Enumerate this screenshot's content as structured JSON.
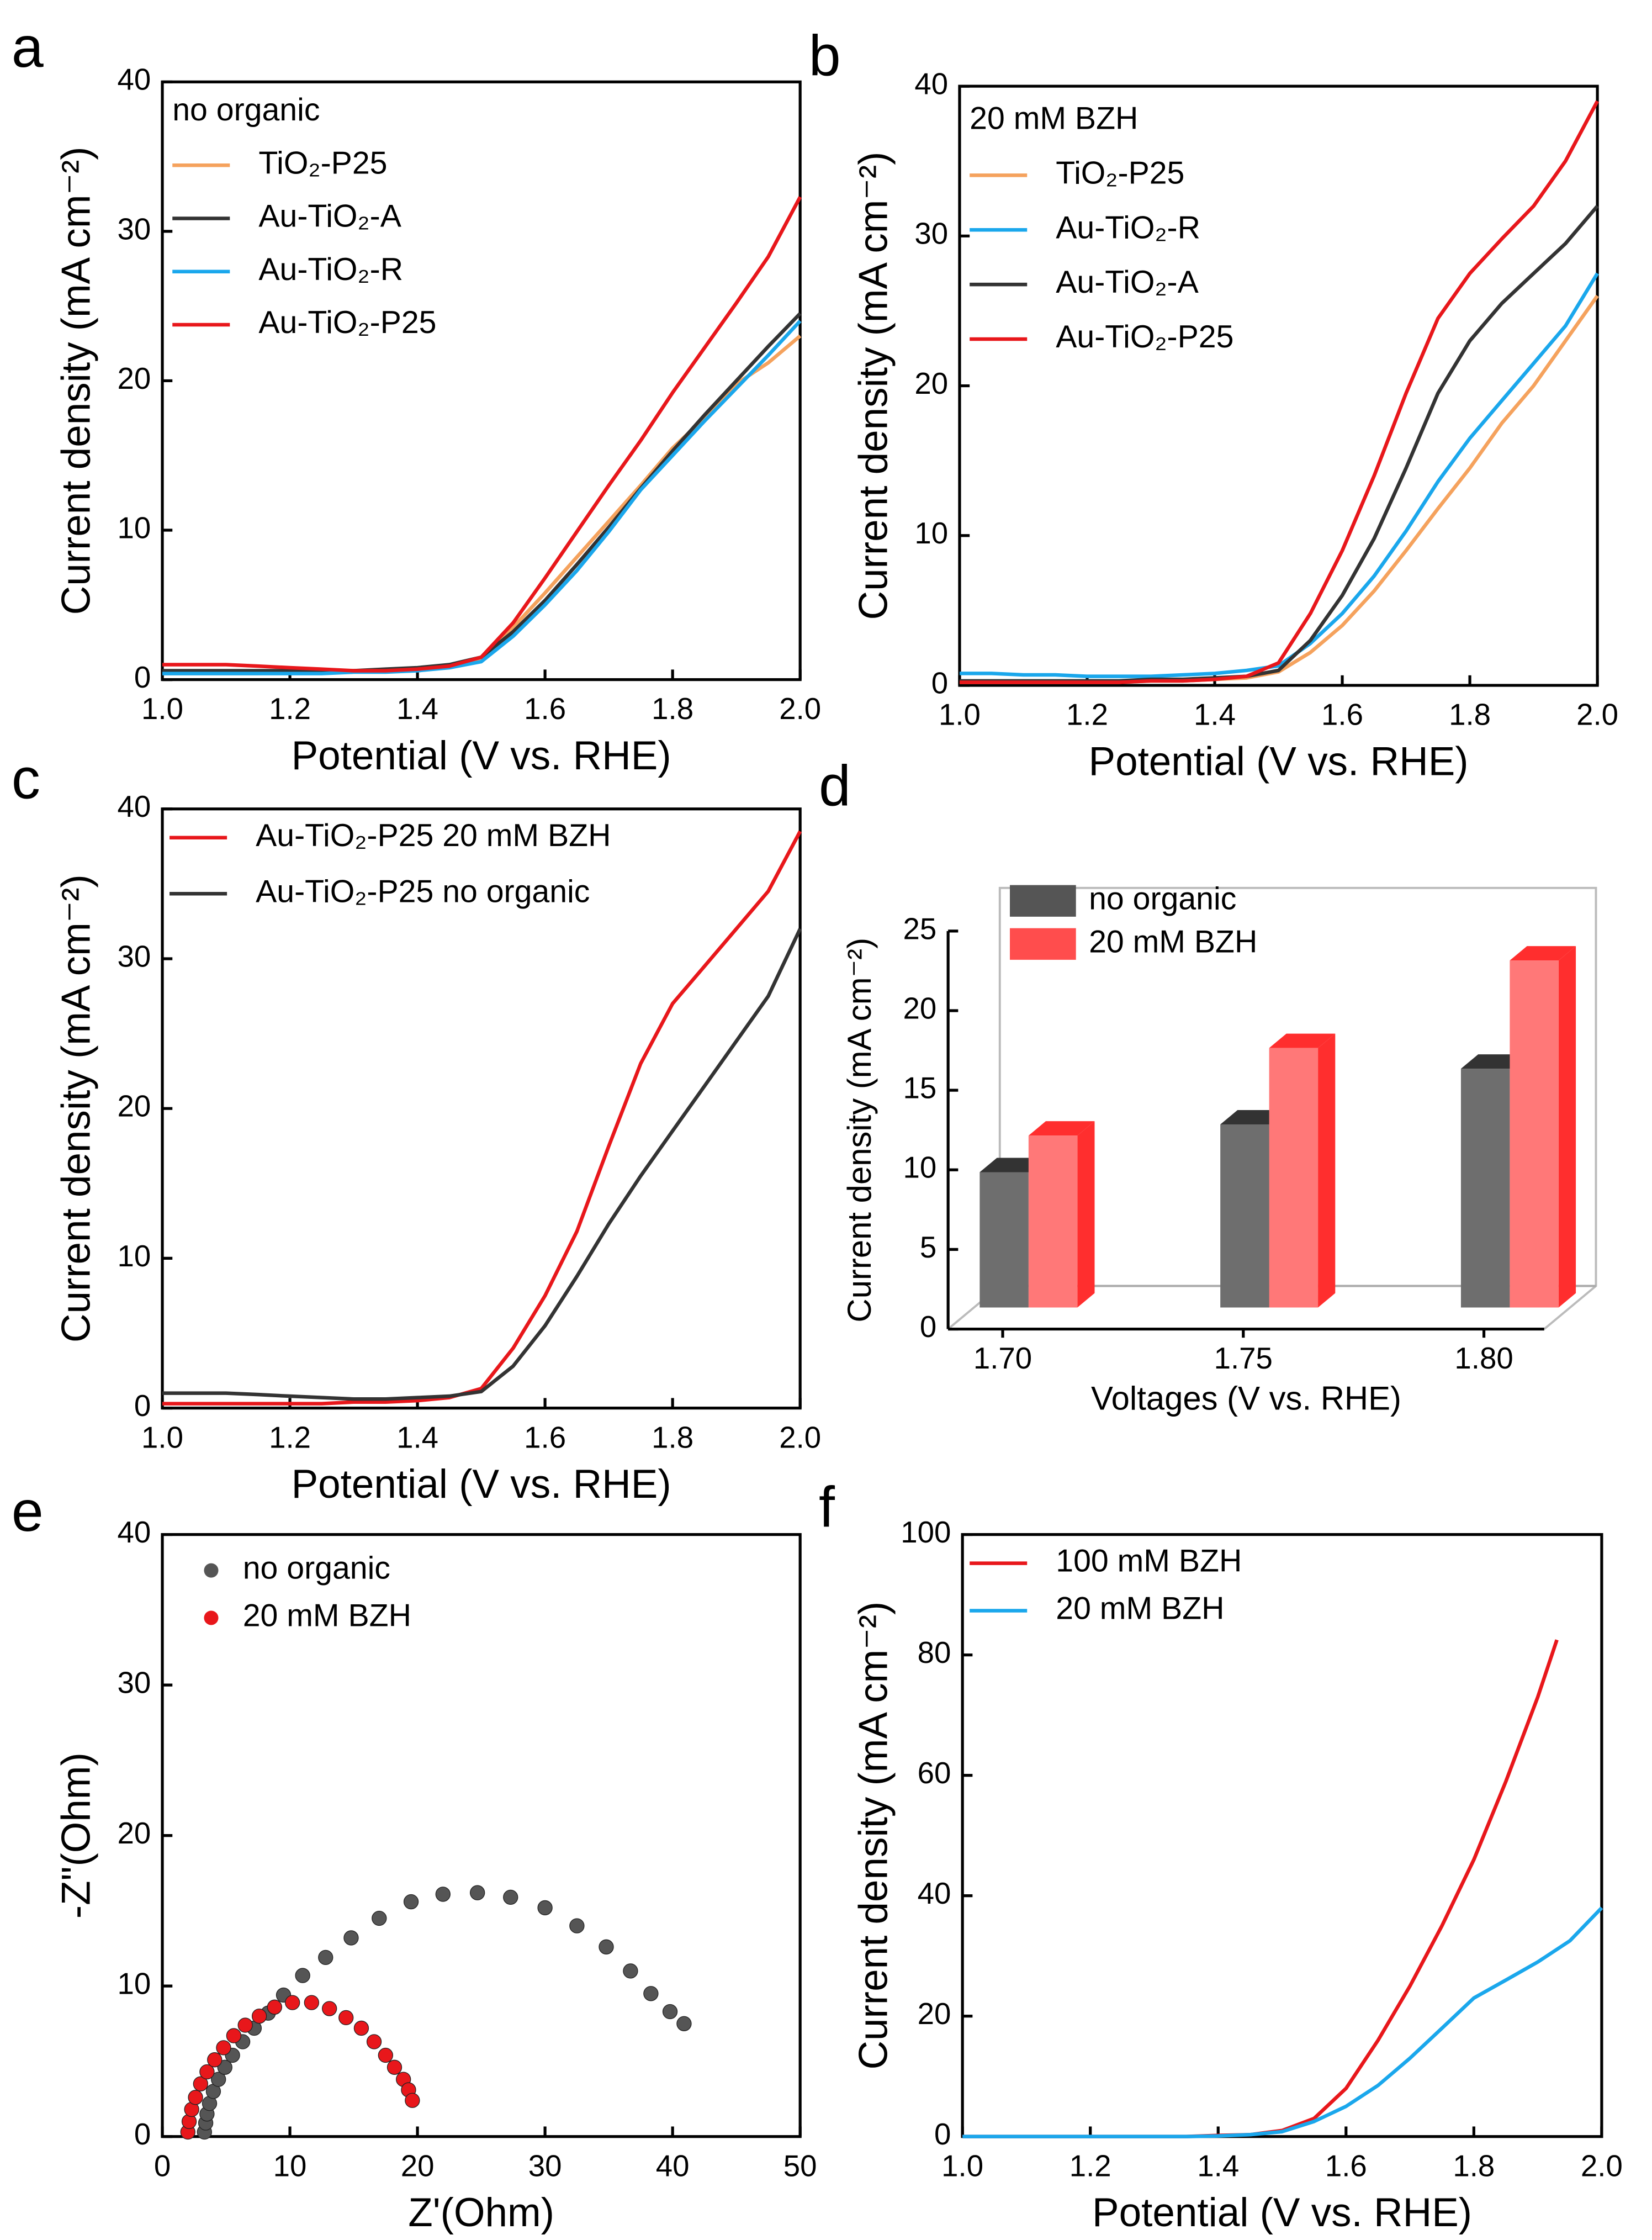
{
  "chart_data": [
    {
      "type": "line",
      "panel": "a",
      "annotation": "no organic",
      "x_label": "Potential (V vs. RHE)",
      "y_label": "Current density (mA cm⁻²)",
      "x": [
        1.0,
        1.05,
        1.1,
        1.15,
        1.2,
        1.25,
        1.3,
        1.35,
        1.4,
        1.45,
        1.5,
        1.55,
        1.6,
        1.65,
        1.7,
        1.75,
        1.8,
        1.85,
        1.9,
        1.95,
        2.0
      ],
      "series": [
        {
          "name": "TiO₂-P25",
          "color": "#f5a25d",
          "values": [
            0.4,
            0.4,
            0.4,
            0.4,
            0.5,
            0.5,
            0.6,
            0.6,
            0.7,
            0.9,
            1.4,
            3.5,
            5.8,
            8.2,
            10.6,
            13,
            15.5,
            17.5,
            19.8,
            21.2,
            23
          ]
        },
        {
          "name": "Au-TiO₂-A",
          "color": "#333333",
          "values": [
            0.6,
            0.6,
            0.6,
            0.6,
            0.6,
            0.6,
            0.6,
            0.7,
            0.8,
            1.0,
            1.5,
            3.2,
            5.3,
            7.7,
            10.2,
            12.8,
            15.3,
            17.7,
            20,
            22.3,
            24.5
          ]
        },
        {
          "name": "Au-TiO₂-R",
          "color": "#1aa7ec",
          "values": [
            0.4,
            0.4,
            0.4,
            0.4,
            0.4,
            0.4,
            0.5,
            0.5,
            0.6,
            0.8,
            1.2,
            2.9,
            5,
            7.3,
            9.9,
            12.7,
            15,
            17.3,
            19.5,
            21.7,
            24
          ]
        },
        {
          "name": "Au-TiO₂-P25",
          "color": "#e8171b",
          "values": [
            1,
            1,
            1,
            0.9,
            0.8,
            0.7,
            0.6,
            0.6,
            0.7,
            0.9,
            1.5,
            3.8,
            6.8,
            9.9,
            13,
            16,
            19.2,
            22.2,
            25.2,
            28.3,
            32.3
          ]
        }
      ],
      "xlim": [
        1,
        2
      ],
      "xticks": [
        {
          "value": 1,
          "label": "1.0"
        },
        1.2,
        1.4,
        1.6,
        1.8,
        {
          "value": 2,
          "label": "2.0"
        }
      ],
      "ylim": [
        0,
        40
      ],
      "yticks": [
        0,
        10,
        20,
        30,
        40
      ]
    },
    {
      "type": "line",
      "panel": "b",
      "annotation": "20 mM BZH",
      "x_label": "Potential (V vs. RHE)",
      "y_label": "Current density (mA cm⁻²)",
      "x": [
        1.0,
        1.05,
        1.1,
        1.15,
        1.2,
        1.25,
        1.3,
        1.35,
        1.4,
        1.45,
        1.5,
        1.55,
        1.6,
        1.65,
        1.7,
        1.75,
        1.8,
        1.85,
        1.9,
        1.95,
        2.0
      ],
      "series": [
        {
          "name": "TiO₂-P25",
          "color": "#f5a25d",
          "values": [
            0.2,
            0.2,
            0.2,
            0.2,
            0.2,
            0.2,
            0.3,
            0.3,
            0.4,
            0.5,
            0.9,
            2.2,
            4,
            6.3,
            9,
            11.8,
            14.5,
            17.5,
            20,
            23,
            26
          ]
        },
        {
          "name": "Au-TiO₂-R",
          "color": "#1aa7ec",
          "values": [
            0.8,
            0.8,
            0.7,
            0.7,
            0.6,
            0.6,
            0.6,
            0.7,
            0.8,
            1,
            1.3,
            2.8,
            4.8,
            7.3,
            10.3,
            13.6,
            16.5,
            19,
            21.5,
            24,
            27.5
          ]
        },
        {
          "name": "Au-TiO₂-A",
          "color": "#333333",
          "values": [
            0.3,
            0.3,
            0.3,
            0.3,
            0.3,
            0.3,
            0.4,
            0.4,
            0.5,
            0.6,
            1,
            3,
            6,
            9.8,
            14.5,
            19.5,
            23,
            25.5,
            27.5,
            29.5,
            32
          ]
        },
        {
          "name": "Au-TiO₂-P25",
          "color": "#e8171b",
          "values": [
            0.2,
            0.2,
            0.2,
            0.2,
            0.2,
            0.2,
            0.3,
            0.3,
            0.4,
            0.6,
            1.5,
            4.8,
            9,
            14,
            19.5,
            24.5,
            27.5,
            29.8,
            32,
            35,
            39
          ]
        }
      ],
      "xlim": [
        1,
        2
      ],
      "xticks": [
        {
          "value": 1,
          "label": "1.0"
        },
        1.2,
        1.4,
        1.6,
        1.8,
        {
          "value": 2,
          "label": "2.0"
        }
      ],
      "ylim": [
        0,
        40
      ],
      "yticks": [
        0,
        10,
        20,
        30,
        40
      ]
    },
    {
      "type": "line",
      "panel": "c",
      "x_label": "Potential (V vs. RHE)",
      "y_label": "Current density (mA cm⁻²)",
      "x": [
        1.0,
        1.05,
        1.1,
        1.15,
        1.2,
        1.25,
        1.3,
        1.35,
        1.4,
        1.45,
        1.5,
        1.55,
        1.6,
        1.65,
        1.7,
        1.75,
        1.8,
        1.85,
        1.9,
        1.95,
        2.0
      ],
      "series": [
        {
          "name": "Au-TiO₂-P25 20 mM BZH",
          "color": "#e8171b",
          "values": [
            0.3,
            0.3,
            0.3,
            0.3,
            0.3,
            0.3,
            0.4,
            0.4,
            0.5,
            0.7,
            1.3,
            4,
            7.5,
            11.8,
            17.5,
            23,
            27,
            29.5,
            32,
            34.5,
            38.5
          ]
        },
        {
          "name": "Au-TiO₂-P25 no organic",
          "color": "#333333",
          "values": [
            1,
            1,
            1,
            0.9,
            0.8,
            0.7,
            0.6,
            0.6,
            0.7,
            0.8,
            1.1,
            2.8,
            5.5,
            8.8,
            12.3,
            15.5,
            18.5,
            21.5,
            24.5,
            27.5,
            32
          ]
        }
      ],
      "xlim": [
        1,
        2
      ],
      "xticks": [
        {
          "value": 1,
          "label": "1.0"
        },
        1.2,
        1.4,
        1.6,
        1.8,
        {
          "value": 2,
          "label": "2.0"
        }
      ],
      "ylim": [
        0,
        40
      ],
      "yticks": [
        0,
        10,
        20,
        30,
        40
      ]
    },
    {
      "type": "bar3d",
      "panel": "d",
      "x_label": "Voltages (V vs. RHE)",
      "y_label": "Current density (mA cm⁻²)",
      "categories": [
        "1.70",
        "1.75",
        "1.80"
      ],
      "series": [
        {
          "name": "no organic",
          "color": "#555555",
          "values": [
            8.5,
            11.5,
            15
          ]
        },
        {
          "name": "20 mM BZH",
          "color": "#ff4d4d",
          "values": [
            10.8,
            16.3,
            21.8
          ]
        }
      ],
      "ylim": [
        0,
        25
      ],
      "yticks": [
        0,
        5,
        10,
        15,
        20,
        25
      ]
    },
    {
      "type": "scatter",
      "panel": "e",
      "x_label": "Z'(Ohm)",
      "y_label": "-Z\"(Ohm)",
      "series": [
        {
          "name": "no organic",
          "color": "#555555",
          "x": [
            3.3,
            3.4,
            3.5,
            3.7,
            4,
            4.4,
            4.9,
            5.5,
            6.3,
            7.2,
            8.3,
            9.5,
            11,
            12.8,
            14.8,
            17,
            19.5,
            22,
            24.7,
            27.3,
            30,
            32.5,
            34.8,
            36.7,
            38.3,
            39.8,
            40.9
          ],
          "values": [
            0.3,
            0.9,
            1.5,
            2.2,
            3,
            3.8,
            4.6,
            5.4,
            6.3,
            7.2,
            8.2,
            9.4,
            10.7,
            11.9,
            13.2,
            14.5,
            15.6,
            16.1,
            16.2,
            15.9,
            15.2,
            14,
            12.6,
            11,
            9.5,
            8.3,
            7.5
          ]
        },
        {
          "name": "20 mM BZH",
          "color": "#e8171b",
          "x": [
            2,
            2.1,
            2.3,
            2.6,
            3,
            3.5,
            4.1,
            4.8,
            5.6,
            6.5,
            7.6,
            8.8,
            10.2,
            11.7,
            13.1,
            14.4,
            15.6,
            16.6,
            17.5,
            18.2,
            18.9,
            19.3,
            19.6
          ],
          "values": [
            0.3,
            1,
            1.8,
            2.6,
            3.5,
            4.3,
            5.1,
            5.9,
            6.7,
            7.4,
            8,
            8.6,
            8.9,
            8.9,
            8.5,
            7.9,
            7.2,
            6.3,
            5.4,
            4.6,
            3.8,
            3.1,
            2.4
          ]
        }
      ],
      "xlim": [
        0,
        50
      ],
      "xticks": [
        0,
        10,
        20,
        30,
        40,
        50
      ],
      "ylim": [
        0,
        40
      ],
      "yticks": [
        0,
        10,
        20,
        30,
        40
      ]
    },
    {
      "type": "line",
      "panel": "f",
      "x_label": "Potential (V vs. RHE)",
      "y_label": "Current density (mA cm⁻²)",
      "series": [
        {
          "name": "100 mM BZH",
          "color": "#e8171b",
          "x": [
            1.0,
            1.05,
            1.1,
            1.15,
            1.2,
            1.25,
            1.3,
            1.35,
            1.4,
            1.45,
            1.5,
            1.55,
            1.6,
            1.65,
            1.7,
            1.75,
            1.8,
            1.85,
            1.9,
            1.93
          ],
          "values": [
            0,
            0,
            0,
            0,
            0,
            0,
            0,
            0,
            0.2,
            0.3,
            1,
            3,
            8,
            16,
            25,
            35,
            46,
            59,
            73,
            82.5
          ]
        },
        {
          "name": "20 mM BZH",
          "color": "#1aa7ec",
          "x": [
            1.0,
            1.05,
            1.1,
            1.15,
            1.2,
            1.25,
            1.3,
            1.35,
            1.4,
            1.45,
            1.5,
            1.55,
            1.6,
            1.65,
            1.7,
            1.75,
            1.8,
            1.85,
            1.9,
            1.95,
            2.0
          ],
          "values": [
            0,
            0,
            0,
            0,
            0,
            0,
            0,
            0,
            0.1,
            0.3,
            0.8,
            2.5,
            5,
            8.5,
            13,
            18,
            23,
            26,
            29,
            32.5,
            38
          ]
        }
      ],
      "xlim": [
        1,
        2
      ],
      "xticks": [
        {
          "value": 1,
          "label": "1.0"
        },
        1.2,
        1.4,
        1.6,
        1.8,
        {
          "value": 2,
          "label": "2.0"
        }
      ],
      "ylim": [
        0,
        100
      ],
      "yticks": [
        0,
        20,
        40,
        60,
        80,
        100
      ]
    }
  ]
}
